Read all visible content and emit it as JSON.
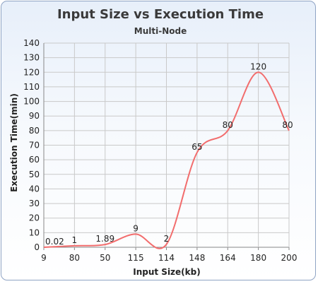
{
  "chart_data": {
    "type": "line",
    "title": "Input Size vs Execution Time",
    "subtitle": "Multi-Node",
    "xlabel": "Input Size(kb)",
    "ylabel": "Execution Time(min)",
    "categories": [
      "9",
      "80",
      "50",
      "115",
      "114",
      "148",
      "164",
      "180",
      "200"
    ],
    "series": [
      {
        "values": [
          0.02,
          1,
          1.89,
          9,
          2,
          65,
          80,
          120,
          80
        ],
        "data_labels": [
          "0.02",
          "1",
          "1.89",
          "9",
          "2",
          "65",
          "80",
          "120",
          "80"
        ],
        "color": "#f26d6d"
      }
    ],
    "ylim": [
      0,
      140
    ],
    "ytick_step": 10,
    "grid": true,
    "legend": "none"
  }
}
